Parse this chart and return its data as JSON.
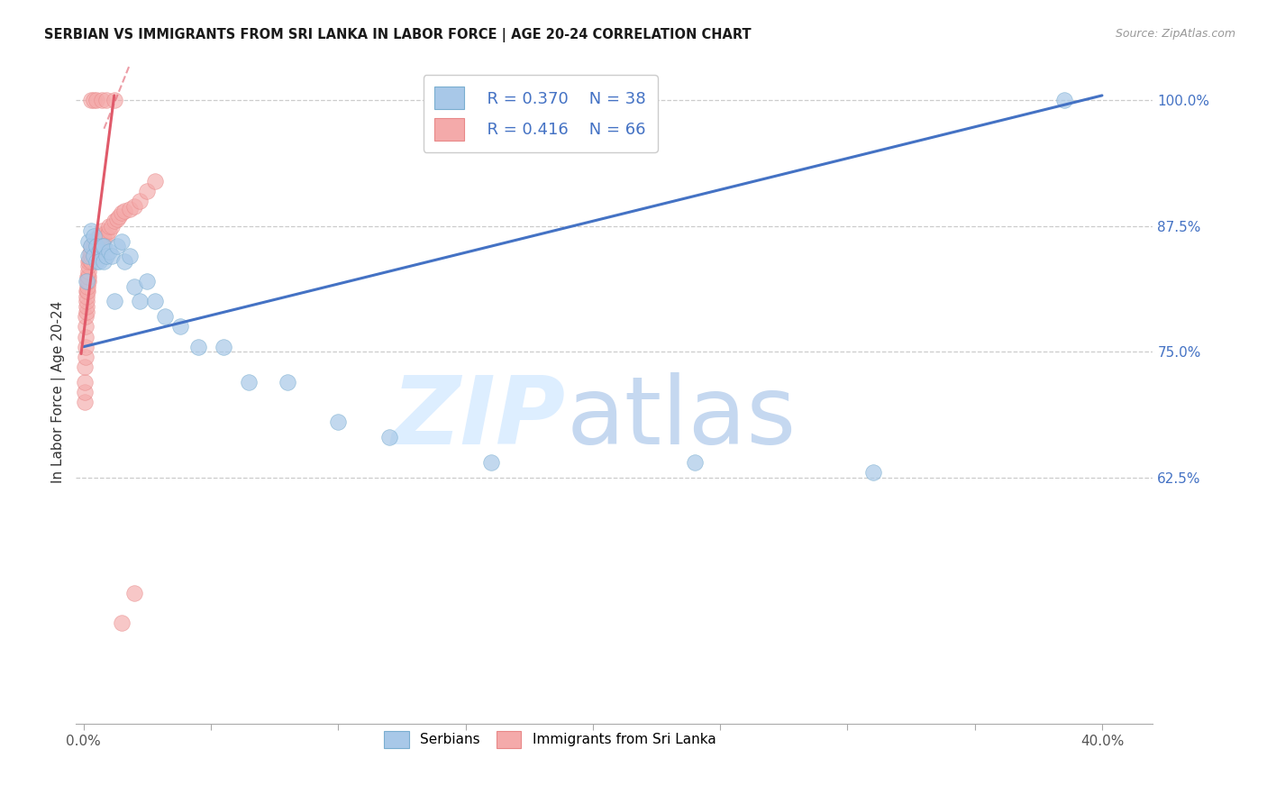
{
  "title": "SERBIAN VS IMMIGRANTS FROM SRI LANKA IN LABOR FORCE | AGE 20-24 CORRELATION CHART",
  "source": "Source: ZipAtlas.com",
  "ylabel": "In Labor Force | Age 20-24",
  "xlim": [
    -0.003,
    0.42
  ],
  "ylim": [
    0.38,
    1.04
  ],
  "xtick_positions": [
    0.0,
    0.05,
    0.1,
    0.15,
    0.2,
    0.25,
    0.3,
    0.35,
    0.4
  ],
  "xticklabels": [
    "0.0%",
    "",
    "",
    "",
    "",
    "",
    "",
    "",
    "40.0%"
  ],
  "ytick_positions": [
    0.625,
    0.75,
    0.875,
    1.0
  ],
  "yticklabels": [
    "62.5%",
    "75.0%",
    "87.5%",
    "100.0%"
  ],
  "grid_lines": [
    0.625,
    0.75,
    0.875,
    1.0
  ],
  "blue_color": "#a8c8e8",
  "pink_color": "#f4aaaa",
  "blue_fill": "#a8c8e8",
  "pink_fill": "#f4aaaa",
  "blue_edge": "#7aaed0",
  "pink_edge": "#e88888",
  "blue_line_color": "#4472c4",
  "pink_line_color": "#e05a6a",
  "R_blue": "0.370",
  "N_blue": "38",
  "R_pink": "0.416",
  "N_pink": "66",
  "legend_blue": "Serbians",
  "legend_pink": "Immigrants from Sri Lanka",
  "blue_scatter_x": [
    0.001,
    0.002,
    0.002,
    0.003,
    0.003,
    0.004,
    0.004,
    0.005,
    0.005,
    0.006,
    0.006,
    0.007,
    0.008,
    0.008,
    0.009,
    0.01,
    0.011,
    0.012,
    0.013,
    0.015,
    0.016,
    0.018,
    0.02,
    0.022,
    0.025,
    0.028,
    0.032,
    0.038,
    0.045,
    0.055,
    0.065,
    0.08,
    0.1,
    0.12,
    0.16,
    0.24,
    0.31,
    0.385
  ],
  "blue_scatter_y": [
    0.82,
    0.845,
    0.86,
    0.855,
    0.87,
    0.845,
    0.865,
    0.84,
    0.855,
    0.85,
    0.84,
    0.855,
    0.84,
    0.855,
    0.845,
    0.85,
    0.845,
    0.8,
    0.855,
    0.86,
    0.84,
    0.845,
    0.815,
    0.8,
    0.82,
    0.8,
    0.785,
    0.775,
    0.755,
    0.755,
    0.72,
    0.72,
    0.68,
    0.665,
    0.64,
    0.64,
    0.63,
    1.0
  ],
  "pink_scatter_x": [
    0.0003,
    0.0004,
    0.0005,
    0.0005,
    0.0006,
    0.0007,
    0.0007,
    0.0008,
    0.0009,
    0.001,
    0.001,
    0.001,
    0.001,
    0.0012,
    0.0013,
    0.0014,
    0.0015,
    0.0015,
    0.002,
    0.002,
    0.002,
    0.002,
    0.002,
    0.0022,
    0.0025,
    0.003,
    0.003,
    0.003,
    0.003,
    0.004,
    0.004,
    0.004,
    0.0045,
    0.005,
    0.005,
    0.005,
    0.006,
    0.006,
    0.006,
    0.007,
    0.007,
    0.007,
    0.008,
    0.008,
    0.009,
    0.01,
    0.01,
    0.011,
    0.012,
    0.013,
    0.014,
    0.015,
    0.016,
    0.018,
    0.02,
    0.022,
    0.025,
    0.028,
    0.003,
    0.004,
    0.005,
    0.007,
    0.009,
    0.012,
    0.015,
    0.02
  ],
  "pink_scatter_y": [
    0.7,
    0.71,
    0.72,
    0.735,
    0.745,
    0.755,
    0.765,
    0.775,
    0.785,
    0.79,
    0.795,
    0.8,
    0.81,
    0.805,
    0.81,
    0.815,
    0.82,
    0.825,
    0.82,
    0.825,
    0.83,
    0.835,
    0.84,
    0.842,
    0.848,
    0.84,
    0.845,
    0.85,
    0.855,
    0.848,
    0.853,
    0.858,
    0.858,
    0.852,
    0.856,
    0.862,
    0.856,
    0.86,
    0.865,
    0.86,
    0.865,
    0.87,
    0.862,
    0.867,
    0.865,
    0.87,
    0.875,
    0.875,
    0.88,
    0.882,
    0.885,
    0.888,
    0.89,
    0.892,
    0.895,
    0.9,
    0.91,
    0.92,
    1.0,
    1.0,
    1.0,
    1.0,
    1.0,
    1.0,
    0.48,
    0.51
  ],
  "blue_line_x": [
    0.0,
    0.4
  ],
  "blue_line_y": [
    0.755,
    1.005
  ],
  "pink_line_x": [
    -0.001,
    0.016
  ],
  "pink_line_y": [
    0.748,
    1.01
  ]
}
